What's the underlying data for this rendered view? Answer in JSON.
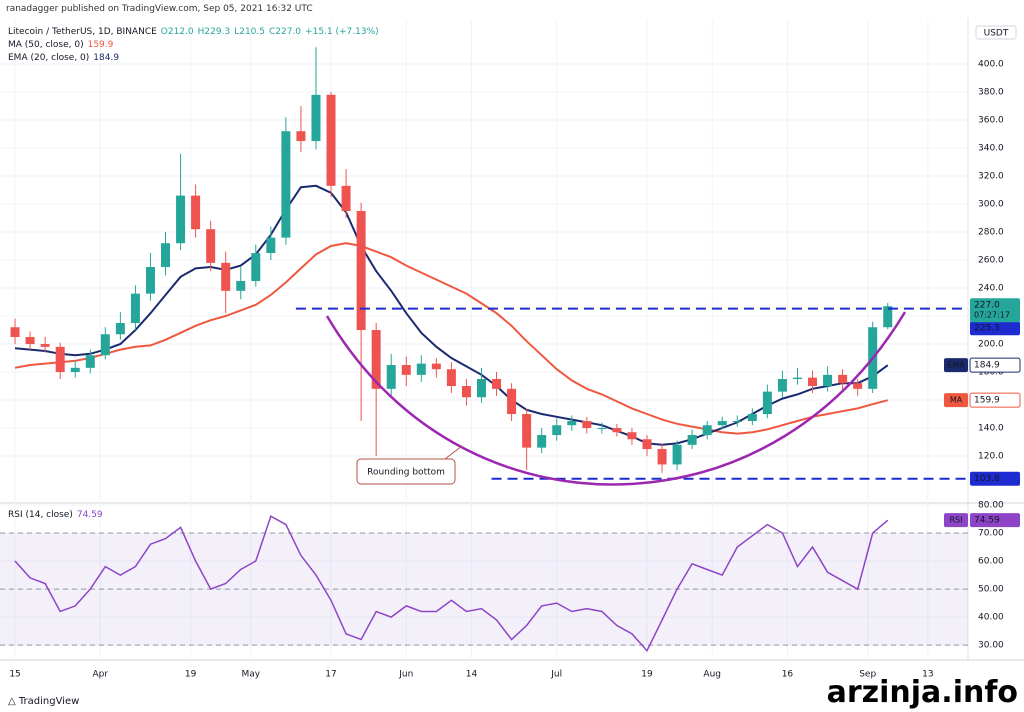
{
  "header": {
    "publisher": "ranadagger published on TradingView.com, Sep 05, 2021 16:32 UTC"
  },
  "chart_data": [
    {
      "type": "candlestick",
      "title": "Litecoin / TetherUS, 1D, BINANCE",
      "legend_values": [
        "O212.0",
        "H229.3",
        "L210.5",
        "C227.0",
        "+15.1 (+7.13%)"
      ],
      "currency": "USDT",
      "x": [
        0,
        3,
        6,
        9,
        12,
        15,
        18,
        21,
        24,
        27,
        30,
        33,
        36,
        39,
        42,
        45,
        48,
        51,
        54,
        57,
        60,
        63,
        66,
        69,
        72,
        75,
        78,
        81,
        84,
        87,
        90,
        93,
        96,
        99,
        102,
        105,
        108,
        111,
        114,
        117,
        120,
        123,
        126,
        129,
        132,
        135,
        138,
        141,
        144,
        147,
        150,
        153,
        156,
        159,
        162,
        165,
        168,
        171,
        174
      ],
      "open": [
        212,
        205,
        200,
        198,
        180,
        183,
        192,
        207,
        215,
        236,
        255,
        272,
        306,
        282,
        258,
        238,
        245,
        265,
        276,
        352,
        345,
        378,
        313,
        295,
        210,
        168,
        185,
        178,
        186,
        182,
        170,
        162,
        175,
        168,
        150,
        126,
        135,
        142,
        145,
        140,
        140,
        137,
        132,
        125,
        114,
        128,
        135,
        142,
        145,
        145,
        150,
        166,
        175,
        176,
        170,
        178,
        172,
        168,
        212
      ],
      "high": [
        218,
        209,
        205,
        201,
        188,
        196,
        212,
        223,
        242,
        265,
        280,
        336,
        314,
        288,
        266,
        255,
        271,
        284,
        362,
        370,
        412,
        380,
        325,
        301,
        215,
        193,
        191,
        192,
        190,
        187,
        175,
        183,
        180,
        172,
        154,
        140,
        147,
        149,
        148,
        144,
        143,
        140,
        135,
        129,
        131,
        139,
        145,
        148,
        149,
        154,
        171,
        181,
        183,
        181,
        184,
        182,
        175,
        216,
        229.3
      ],
      "low": [
        200,
        196,
        194,
        175,
        176,
        179,
        189,
        203,
        210,
        231,
        249,
        267,
        276,
        252,
        222,
        232,
        241,
        260,
        271,
        337,
        339,
        305,
        290,
        145,
        120,
        163,
        170,
        173,
        176,
        165,
        156,
        158,
        163,
        145,
        110,
        122,
        131,
        138,
        136,
        136,
        134,
        128,
        120,
        108,
        110,
        125,
        132,
        139,
        141,
        142,
        147,
        162,
        171,
        165,
        166,
        167,
        163,
        165,
        210.5
      ],
      "close": [
        205,
        200,
        198,
        180,
        183,
        192,
        207,
        215,
        236,
        255,
        272,
        306,
        282,
        258,
        238,
        245,
        265,
        276,
        352,
        345,
        378,
        313,
        295,
        210,
        168,
        185,
        178,
        186,
        182,
        170,
        162,
        175,
        168,
        150,
        126,
        135,
        142,
        145,
        140,
        140,
        137,
        132,
        125,
        114,
        128,
        135,
        142,
        145,
        145,
        150,
        166,
        175,
        176,
        170,
        178,
        172,
        168,
        212,
        227
      ],
      "up_color": "#26a69a",
      "down_color": "#ef5350",
      "last_price_label": "227.0",
      "countdown": "07:27:17",
      "series": [
        {
          "name": "MA (50, close, 0)",
          "tag": "MA",
          "legend_value": "159.9",
          "color": "#f0573f",
          "values": [
            183,
            185,
            186,
            187,
            188,
            190,
            193,
            196,
            198,
            199,
            203,
            208,
            213,
            217,
            220,
            224,
            228,
            235,
            244,
            254,
            264,
            270,
            272,
            270,
            266,
            262,
            256,
            251,
            246,
            241,
            236,
            229,
            222,
            213,
            202,
            192,
            182,
            174,
            168,
            164,
            159,
            154,
            150,
            146,
            143,
            141,
            139,
            137,
            136,
            137,
            139,
            142,
            145,
            148,
            150,
            152,
            154,
            157,
            159.9
          ]
        },
        {
          "name": "EMA (20, close, 0)",
          "tag": "EMA",
          "legend_value": "184.9",
          "color": "#1b2a6e",
          "values": [
            197,
            196,
            195,
            193,
            192,
            193,
            196,
            200,
            210,
            222,
            235,
            248,
            254,
            255,
            253,
            256,
            264,
            278,
            296,
            312,
            313,
            308,
            294,
            270,
            252,
            238,
            222,
            208,
            198,
            190,
            184,
            178,
            170,
            160,
            153,
            150,
            148,
            146,
            144,
            142,
            138,
            134,
            129,
            128,
            129,
            132,
            136,
            140,
            144,
            150,
            156,
            161,
            164,
            168,
            170,
            172,
            172,
            177,
            184.9
          ]
        }
      ],
      "levels": [
        {
          "value": 225.3,
          "label": "225.3",
          "x_start": 56
        },
        {
          "value": 103.8,
          "label": "103.8",
          "x_start": 95
        }
      ],
      "level_color": "#1e2bd0",
      "annotation": "Rounding bottom",
      "xlim": [
        -3,
        190
      ],
      "ylim": [
        88.6,
        424.3
      ],
      "yticks": [
        {
          "value": 120,
          "label": "120.0"
        },
        {
          "value": 140,
          "label": "140.0"
        },
        {
          "value": 160,
          "label": "160.0"
        },
        {
          "value": 180,
          "label": "180.0"
        },
        {
          "value": 200,
          "label": "200.0"
        },
        {
          "value": 220,
          "label": "220.0"
        },
        {
          "value": 240,
          "label": "240.0"
        },
        {
          "value": 260,
          "label": "260.0"
        },
        {
          "value": 280,
          "label": "280.0"
        },
        {
          "value": 300,
          "label": "300.0"
        },
        {
          "value": 320,
          "label": "320.0"
        },
        {
          "value": 340,
          "label": "340.0"
        },
        {
          "value": 360,
          "label": "360.0"
        },
        {
          "value": 380,
          "label": "380.0"
        },
        {
          "value": 400,
          "label": "400.0"
        }
      ],
      "grid": true
    },
    {
      "type": "line",
      "title": "RSI (14, close)",
      "legend_value": "74.59",
      "tag": "RSI",
      "color": "#8e44c7",
      "x": [
        0,
        3,
        6,
        9,
        12,
        15,
        18,
        21,
        24,
        27,
        30,
        33,
        36,
        39,
        42,
        45,
        48,
        51,
        54,
        57,
        60,
        63,
        66,
        69,
        72,
        75,
        78,
        81,
        84,
        87,
        90,
        93,
        96,
        99,
        102,
        105,
        108,
        111,
        114,
        117,
        120,
        123,
        126,
        129,
        132,
        135,
        138,
        141,
        144,
        147,
        150,
        153,
        156,
        159,
        162,
        165,
        168,
        171,
        174
      ],
      "values": [
        60,
        54,
        52,
        42,
        44,
        50,
        58,
        55,
        58,
        66,
        68,
        72,
        60,
        50,
        52,
        57,
        60,
        76,
        73,
        62,
        55,
        46,
        34,
        32,
        42,
        40,
        44,
        42,
        42,
        46,
        42,
        43,
        39,
        32,
        37,
        44,
        45,
        42,
        43,
        42,
        37,
        34,
        28,
        39,
        50,
        59,
        57,
        55,
        65,
        69,
        73,
        70,
        58,
        65,
        56,
        53,
        50,
        70,
        74.59
      ],
      "levels": [
        30,
        50,
        70
      ],
      "xlim": [
        -3,
        190
      ],
      "ylim": [
        25.4,
        80
      ],
      "yticks": [
        {
          "value": 30,
          "label": "30.00"
        },
        {
          "value": 40,
          "label": "40.00"
        },
        {
          "value": 50,
          "label": "50.00"
        },
        {
          "value": 60,
          "label": "60.00"
        },
        {
          "value": 70,
          "label": "70.00"
        },
        {
          "value": 80,
          "label": "80.00"
        }
      ],
      "xticks": [
        {
          "value": 0,
          "label": "15"
        },
        {
          "value": 17,
          "label": "Apr"
        },
        {
          "value": 35,
          "label": "19"
        },
        {
          "value": 47,
          "label": "May"
        },
        {
          "value": 63,
          "label": "17"
        },
        {
          "value": 78,
          "label": "Jun"
        },
        {
          "value": 91,
          "label": "14"
        },
        {
          "value": 108,
          "label": "Jul"
        },
        {
          "value": 126,
          "label": "19"
        },
        {
          "value": 139,
          "label": "Aug"
        },
        {
          "value": 154,
          "label": "16"
        },
        {
          "value": 170,
          "label": "Sep"
        },
        {
          "value": 182,
          "label": "13"
        }
      ],
      "grid": true
    }
  ],
  "footer": {
    "logo": "TradingView",
    "watermark": "arzinja.info"
  }
}
